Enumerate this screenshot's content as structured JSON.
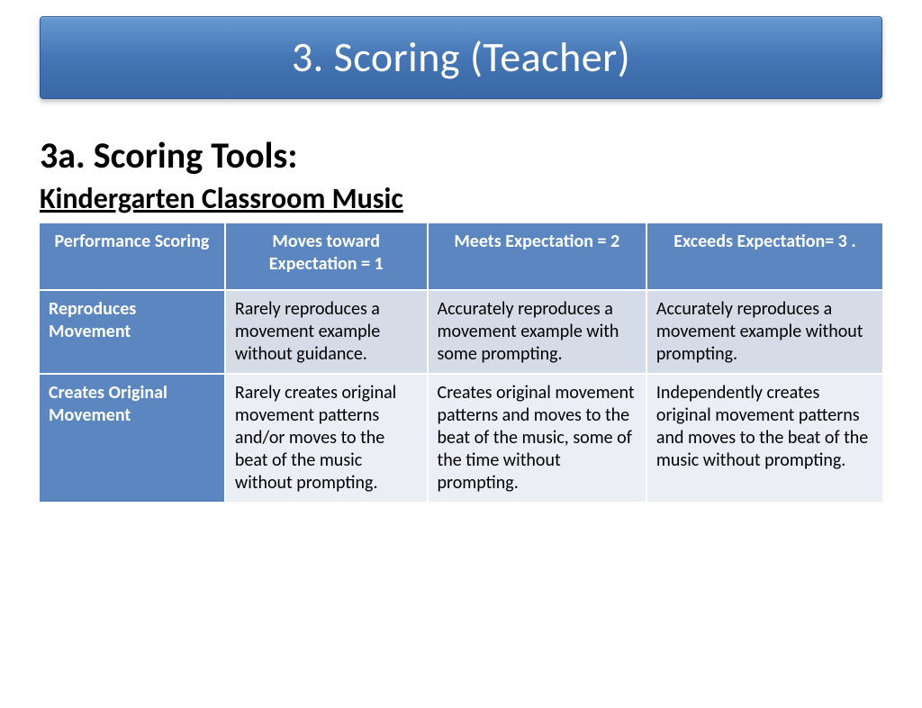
{
  "banner": {
    "title": "3. Scoring (Teacher)"
  },
  "section": {
    "heading": "3a. Scoring Tools:",
    "subheading": "Kindergarten Classroom Music"
  },
  "rubric": {
    "type": "table",
    "columns": [
      "Performance Scoring",
      "Moves toward Expectation = 1",
      "Meets Expectation = 2",
      "Exceeds Expectation= 3 ."
    ],
    "rows": [
      {
        "label": "Reproduces Movement",
        "cells": [
          "Rarely reproduces a movement example without guidance.",
          "Accurately reproduces a movement example with some prompting.",
          "Accurately reproduces a movement example without prompting."
        ]
      },
      {
        "label": "Creates  Original Movement",
        "cells": [
          "Rarely creates original movement patterns and/or moves to the beat of the music without prompting.",
          "Creates original movement patterns and moves to the beat of the music, some of the time without prompting.",
          "Independently creates original movement patterns and moves to the beat of the music without prompting."
        ]
      }
    ],
    "colors": {
      "banner_gradient_top": "#6699d1",
      "banner_gradient_bottom": "#3a68a6",
      "header_bg": "#5b86bf",
      "header_text": "#ffffff",
      "row_a_bg": "#d5dce8",
      "row_b_bg": "#ebeef5",
      "cell_text": "#000000",
      "border": "#ffffff"
    },
    "column_widths_pct": [
      22,
      24,
      26,
      28
    ],
    "font": {
      "family": "Calibri",
      "header_size_pt": 20,
      "cell_size_pt": 20
    }
  }
}
